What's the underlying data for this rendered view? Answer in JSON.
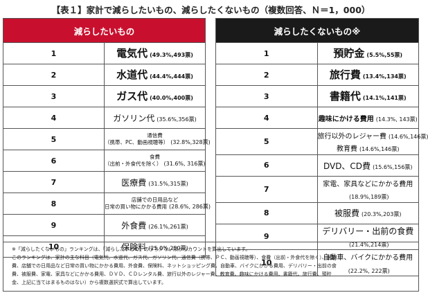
{
  "title": "【表１】家計で減らしたいもの、減らしたくないもの（複数回答、Ｎ＝1，000）",
  "left": {
    "header": "減らしたいもの",
    "rows": [
      {
        "rank": "1",
        "lines": [
          "電気代"
        ],
        "pct": "(49.3%,493票)"
      },
      {
        "rank": "2",
        "lines": [
          "水道代"
        ],
        "pct": "(44.4%,444票)"
      },
      {
        "rank": "3",
        "lines": [
          "ガス代"
        ],
        "pct": "(40.0%,400票)"
      },
      {
        "rank": "4",
        "lines": [
          "ガソリン代"
        ],
        "pct": "(35.6%,356票)"
      },
      {
        "rank": "5",
        "lines": [
          "通信費",
          "（携帯、PC、動画視聴等）"
        ],
        "pct": "(32.8%,328票)"
      },
      {
        "rank": "6",
        "lines": [
          "食費",
          "（出前・外食代を除く）"
        ],
        "pct": "(31.6%, 316票)"
      },
      {
        "rank": "7",
        "lines": [
          "医療費"
        ],
        "pct": "(31.5%,315票)"
      },
      {
        "rank": "8",
        "lines": [
          "店舗での日用品など",
          "日常の買い物にかかる費用"
        ],
        "pct": "(28.6%, 286票)"
      },
      {
        "rank": "9",
        "lines": [
          "外食費"
        ],
        "pct": "(26.1%,261票)"
      },
      {
        "rank": "10",
        "lines": [
          "保険料"
        ],
        "pct": "(25.0%,250票)"
      }
    ]
  },
  "right": {
    "header": "減らしたくないもの※",
    "rows": [
      {
        "rank": "1",
        "lines": [
          "預貯金"
        ],
        "pct": "(5.5%,55票)"
      },
      {
        "rank": "2",
        "lines": [
          "旅行費"
        ],
        "pct": "(13.4%,134票)"
      },
      {
        "rank": "3",
        "lines": [
          "書籍代"
        ],
        "pct": "(14.1%,141票)"
      },
      {
        "rank": "4",
        "lines": [
          "趣味にかける費用"
        ],
        "pct": "(14.3%, 143票)"
      },
      {
        "rank": "5",
        "lines": [
          "旅行以外のレジャー費",
          "教育費"
        ],
        "pcts": [
          "(14.6%,146票)",
          "(14.6%,146票)"
        ]
      },
      {
        "rank": "6",
        "lines": [
          "DVD、CD費"
        ],
        "pct": "(15.6%,156票)"
      },
      {
        "rank": "7",
        "lines": [
          "家電、家具などにかかる費用"
        ],
        "pct": "(18.9%,189票)"
      },
      {
        "rank": "8",
        "lines": [
          "被服費"
        ],
        "pct": "(20.3%,203票)"
      },
      {
        "rank": "9",
        "lines": [
          "デリバリー・出前の食費"
        ],
        "pct": "(21.4%,214票)"
      },
      {
        "rank": "10",
        "lines": [
          "自動車、バイクにかかる費用"
        ],
        "pct": "(22.2%, 222票)"
      }
    ]
  },
  "note": [
    "※「減らしたくないもの」ランキングは、「減らしたいもの」のうち少ない順からカウントを算出しています。",
    "このランキングは、家計の主な科目（電気代、水道代、ガス代、ガソリン代、通信費（携帯、ＰＣ、動画視聴等）、食費（出前・外食代を除く）、医療",
    "費、店舗での日用品など日常の買い物にかかる費用、外食費、保険料、ネットショッピング費、自動車、バイクにかかる費用、デリバリー・出前の食",
    "費、被服費、家電、家具などにかかる費用、ＤＶＤ、ＣＤレンタル費、旅行以外のレジャー費、教育費、趣味にかける費用、書籍代、旅行費、預貯",
    "金、上記に当てはまるものはない）から複数選択式で算出しています。"
  ]
}
